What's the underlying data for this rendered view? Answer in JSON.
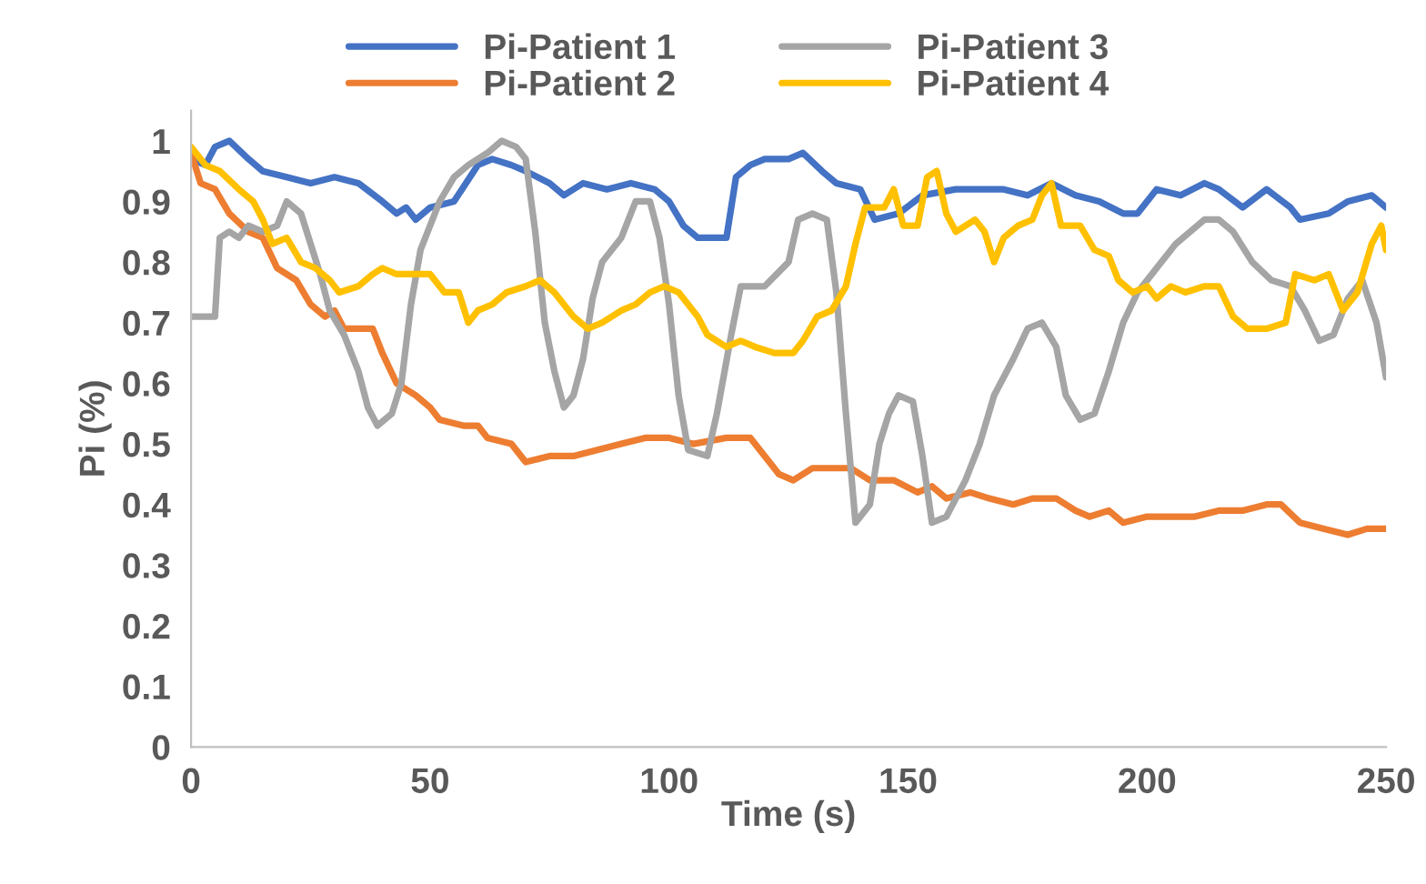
{
  "chart_data": {
    "type": "line",
    "xlabel": "Time (s)",
    "ylabel": "Pi (%)",
    "xlim": [
      0,
      250
    ],
    "xticks": [
      0,
      50,
      100,
      150,
      200,
      250
    ],
    "ylim": [
      0,
      1.05
    ],
    "yticks": [
      0,
      0.1,
      0.2,
      0.3,
      0.4,
      0.5,
      0.6,
      0.7,
      0.8,
      0.9,
      1
    ],
    "grid": false,
    "legend": "top",
    "marker": "none",
    "line_style": "solid",
    "series": [
      {
        "name": "Pi-Patient 1",
        "color": "#4472c4",
        "x": [
          0,
          3,
          5,
          8,
          12,
          15,
          20,
          25,
          30,
          35,
          40,
          43,
          45,
          47,
          50,
          55,
          60,
          63,
          67,
          70,
          75,
          78,
          82,
          87,
          92,
          97,
          100,
          103,
          106,
          112,
          114,
          117,
          120,
          125,
          128,
          132,
          135,
          140,
          143,
          148,
          153,
          160,
          165,
          170,
          175,
          180,
          185,
          190,
          195,
          198,
          202,
          207,
          212,
          215,
          220,
          225,
          230,
          232,
          238,
          242,
          247,
          250
        ],
        "values": [
          0.97,
          0.96,
          0.99,
          1.0,
          0.97,
          0.95,
          0.94,
          0.93,
          0.94,
          0.93,
          0.9,
          0.88,
          0.89,
          0.87,
          0.89,
          0.9,
          0.96,
          0.97,
          0.96,
          0.95,
          0.93,
          0.91,
          0.93,
          0.92,
          0.93,
          0.92,
          0.9,
          0.86,
          0.84,
          0.84,
          0.94,
          0.96,
          0.97,
          0.97,
          0.98,
          0.95,
          0.93,
          0.92,
          0.87,
          0.88,
          0.91,
          0.92,
          0.92,
          0.92,
          0.91,
          0.93,
          0.91,
          0.9,
          0.88,
          0.88,
          0.92,
          0.91,
          0.93,
          0.92,
          0.89,
          0.92,
          0.89,
          0.87,
          0.88,
          0.9,
          0.91,
          0.89
        ]
      },
      {
        "name": "Pi-Patient 2",
        "color": "#ed7d31",
        "x": [
          0,
          2,
          5,
          8,
          12,
          15,
          18,
          22,
          25,
          28,
          30,
          32,
          38,
          40,
          43,
          47,
          50,
          52,
          57,
          60,
          62,
          67,
          70,
          75,
          80,
          85,
          90,
          95,
          100,
          105,
          112,
          117,
          120,
          123,
          126,
          130,
          138,
          142,
          147,
          152,
          155,
          158,
          163,
          167,
          172,
          176,
          181,
          185,
          188,
          192,
          195,
          200,
          205,
          210,
          215,
          220,
          225,
          228,
          232,
          237,
          242,
          246,
          250
        ],
        "values": [
          0.98,
          0.93,
          0.92,
          0.88,
          0.85,
          0.84,
          0.79,
          0.77,
          0.73,
          0.71,
          0.72,
          0.69,
          0.69,
          0.65,
          0.6,
          0.58,
          0.56,
          0.54,
          0.53,
          0.53,
          0.51,
          0.5,
          0.47,
          0.48,
          0.48,
          0.49,
          0.5,
          0.51,
          0.51,
          0.5,
          0.51,
          0.51,
          0.48,
          0.45,
          0.44,
          0.46,
          0.46,
          0.44,
          0.44,
          0.42,
          0.43,
          0.41,
          0.42,
          0.41,
          0.4,
          0.41,
          0.41,
          0.39,
          0.38,
          0.39,
          0.37,
          0.38,
          0.38,
          0.38,
          0.39,
          0.39,
          0.4,
          0.4,
          0.37,
          0.36,
          0.35,
          0.36,
          0.36
        ]
      },
      {
        "name": "Pi-Patient 3",
        "color": "#a5a5a5",
        "x": [
          0,
          5,
          6,
          8,
          10,
          12,
          15,
          18,
          20,
          23,
          25,
          27,
          29,
          32,
          35,
          37,
          39,
          42,
          44,
          46,
          48,
          52,
          55,
          58,
          62,
          65,
          68,
          70,
          72,
          74,
          76,
          78,
          80,
          82,
          84,
          86,
          90,
          93,
          96,
          98,
          100,
          102,
          104,
          108,
          110,
          113,
          115,
          120,
          125,
          127,
          130,
          133,
          135,
          137,
          139,
          142,
          144,
          146,
          148,
          151,
          153,
          155,
          158,
          162,
          165,
          168,
          172,
          175,
          178,
          181,
          183,
          186,
          189,
          192,
          195,
          198,
          202,
          206,
          212,
          215,
          218,
          222,
          226,
          230,
          233,
          236,
          239,
          242,
          245,
          248,
          250
        ],
        "values": [
          0.71,
          0.71,
          0.84,
          0.85,
          0.84,
          0.86,
          0.85,
          0.86,
          0.9,
          0.88,
          0.83,
          0.78,
          0.72,
          0.68,
          0.62,
          0.56,
          0.53,
          0.55,
          0.6,
          0.73,
          0.82,
          0.9,
          0.94,
          0.96,
          0.98,
          1.0,
          0.99,
          0.97,
          0.85,
          0.7,
          0.62,
          0.56,
          0.58,
          0.64,
          0.74,
          0.8,
          0.84,
          0.9,
          0.9,
          0.84,
          0.73,
          0.58,
          0.49,
          0.48,
          0.55,
          0.68,
          0.76,
          0.76,
          0.8,
          0.87,
          0.88,
          0.87,
          0.75,
          0.55,
          0.37,
          0.4,
          0.5,
          0.55,
          0.58,
          0.57,
          0.48,
          0.37,
          0.38,
          0.44,
          0.5,
          0.58,
          0.64,
          0.69,
          0.7,
          0.66,
          0.58,
          0.54,
          0.55,
          0.62,
          0.7,
          0.75,
          0.79,
          0.83,
          0.87,
          0.87,
          0.85,
          0.8,
          0.77,
          0.76,
          0.72,
          0.67,
          0.68,
          0.74,
          0.77,
          0.7,
          0.61
        ]
      },
      {
        "name": "Pi-Patient 4",
        "color": "#ffc000",
        "x": [
          0,
          3,
          6,
          10,
          13,
          15,
          17,
          20,
          23,
          26,
          29,
          31,
          35,
          38,
          40,
          43,
          47,
          50,
          53,
          56,
          58,
          60,
          63,
          66,
          70,
          73,
          76,
          80,
          83,
          86,
          90,
          93,
          96,
          99,
          102,
          106,
          108,
          112,
          115,
          118,
          122,
          126,
          128,
          131,
          134,
          137,
          139,
          141,
          145,
          147,
          149,
          152,
          154,
          156,
          158,
          160,
          164,
          166,
          168,
          170,
          173,
          176,
          178,
          180,
          182,
          186,
          189,
          192,
          194,
          197,
          200,
          202,
          205,
          208,
          212,
          215,
          218,
          221,
          225,
          229,
          231,
          235,
          238,
          241,
          244,
          247,
          249,
          250
        ],
        "values": [
          0.99,
          0.96,
          0.95,
          0.92,
          0.9,
          0.87,
          0.83,
          0.84,
          0.8,
          0.79,
          0.77,
          0.75,
          0.76,
          0.78,
          0.79,
          0.78,
          0.78,
          0.78,
          0.75,
          0.75,
          0.7,
          0.72,
          0.73,
          0.75,
          0.76,
          0.77,
          0.75,
          0.71,
          0.69,
          0.7,
          0.72,
          0.73,
          0.75,
          0.76,
          0.75,
          0.71,
          0.68,
          0.66,
          0.67,
          0.66,
          0.65,
          0.65,
          0.67,
          0.71,
          0.72,
          0.76,
          0.83,
          0.89,
          0.89,
          0.92,
          0.86,
          0.86,
          0.94,
          0.95,
          0.88,
          0.85,
          0.87,
          0.85,
          0.8,
          0.84,
          0.86,
          0.87,
          0.91,
          0.93,
          0.86,
          0.86,
          0.82,
          0.81,
          0.77,
          0.75,
          0.76,
          0.74,
          0.76,
          0.75,
          0.76,
          0.76,
          0.71,
          0.69,
          0.69,
          0.7,
          0.78,
          0.77,
          0.78,
          0.72,
          0.75,
          0.83,
          0.86,
          0.82
        ]
      }
    ]
  }
}
